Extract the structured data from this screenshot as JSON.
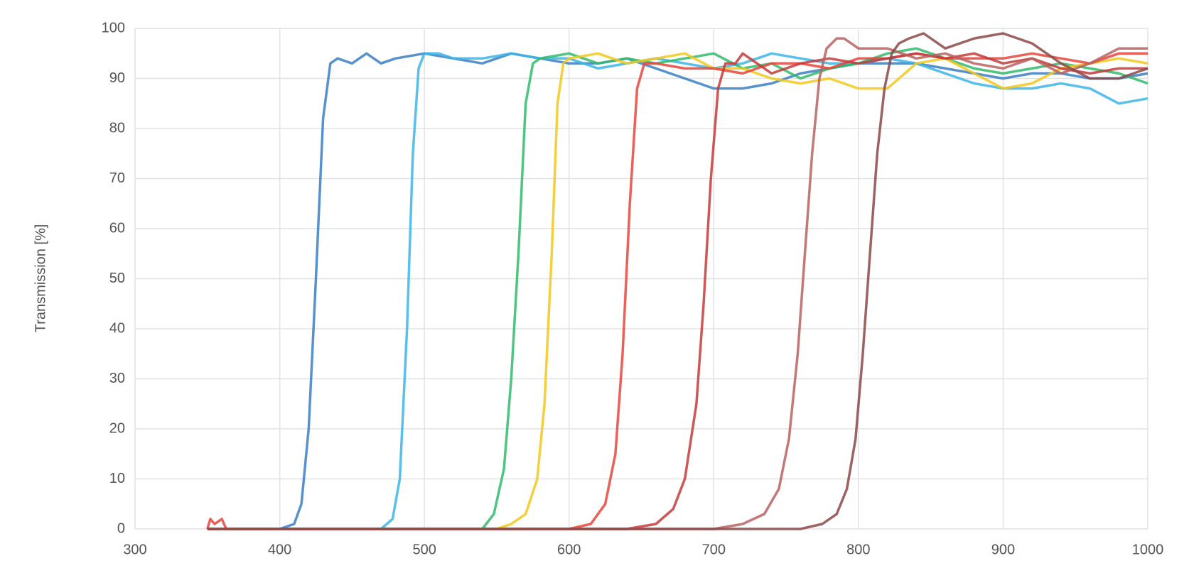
{
  "chart_data": {
    "type": "line",
    "ylabel": "Transmission [%]",
    "xlim": [
      300,
      1000
    ],
    "ylim": [
      0,
      100
    ],
    "xticks": [
      300,
      400,
      500,
      600,
      700,
      800,
      900,
      1000
    ],
    "yticks": [
      0,
      10,
      20,
      30,
      40,
      50,
      60,
      70,
      80,
      90,
      100
    ],
    "grid": true,
    "series": [
      {
        "color": "#3a7fc4",
        "x": [
          350,
          400,
          410,
          415,
          420,
          425,
          430,
          435,
          440,
          450,
          460,
          470,
          480,
          500,
          520,
          540,
          560,
          580,
          600,
          620,
          640,
          660,
          680,
          700,
          720,
          740,
          760,
          780,
          800,
          820,
          840,
          860,
          880,
          900,
          920,
          940,
          960,
          980,
          1000
        ],
        "values": [
          0,
          0,
          1,
          5,
          20,
          50,
          82,
          93,
          94,
          93,
          95,
          93,
          94,
          95,
          94,
          93,
          95,
          94,
          93,
          93,
          94,
          92,
          90,
          88,
          88,
          89,
          91,
          92,
          93,
          93,
          93,
          92,
          91,
          90,
          91,
          91,
          90,
          90,
          91
        ]
      },
      {
        "color": "#3bb5e6",
        "x": [
          350,
          470,
          478,
          483,
          488,
          492,
          496,
          500,
          510,
          520,
          540,
          560,
          580,
          600,
          620,
          640,
          660,
          680,
          700,
          720,
          740,
          760,
          780,
          800,
          820,
          840,
          860,
          880,
          900,
          920,
          940,
          960,
          980,
          1000
        ],
        "values": [
          0,
          0,
          2,
          10,
          40,
          75,
          92,
          95,
          95,
          94,
          94,
          95,
          94,
          94,
          92,
          93,
          94,
          93,
          92,
          93,
          95,
          94,
          93,
          93,
          94,
          93,
          91,
          89,
          88,
          88,
          89,
          88,
          85,
          86
        ]
      },
      {
        "color": "#2fbb6a",
        "x": [
          350,
          540,
          548,
          555,
          560,
          565,
          570,
          575,
          580,
          600,
          620,
          640,
          660,
          680,
          700,
          720,
          740,
          760,
          780,
          800,
          820,
          840,
          860,
          880,
          900,
          920,
          940,
          960,
          980,
          1000
        ],
        "values": [
          0,
          0,
          3,
          12,
          30,
          55,
          85,
          93,
          94,
          95,
          93,
          94,
          93,
          94,
          95,
          92,
          93,
          90,
          92,
          93,
          95,
          96,
          94,
          92,
          91,
          92,
          93,
          92,
          91,
          89
        ]
      },
      {
        "color": "#f2c81a",
        "x": [
          350,
          550,
          560,
          570,
          578,
          583,
          588,
          592,
          596,
          600,
          620,
          640,
          660,
          680,
          700,
          720,
          740,
          760,
          780,
          800,
          820,
          840,
          860,
          880,
          900,
          920,
          940,
          960,
          980,
          1000
        ],
        "values": [
          0,
          0,
          1,
          3,
          10,
          25,
          55,
          85,
          93,
          94,
          95,
          93,
          94,
          95,
          92,
          92,
          90,
          89,
          90,
          88,
          88,
          93,
          94,
          91,
          88,
          89,
          92,
          93,
          94,
          93
        ]
      },
      {
        "color": "#e8443c",
        "x": [
          350,
          352,
          355,
          360,
          363,
          365,
          600,
          615,
          625,
          632,
          637,
          642,
          647,
          652,
          660,
          680,
          700,
          720,
          740,
          760,
          780,
          800,
          820,
          840,
          860,
          880,
          900,
          920,
          940,
          960,
          980,
          1000
        ],
        "values": [
          0,
          2,
          1,
          2,
          0,
          0,
          0,
          1,
          5,
          15,
          35,
          65,
          88,
          93,
          93,
          92,
          92,
          91,
          93,
          93,
          92,
          94,
          94,
          95,
          94,
          94,
          94,
          95,
          94,
          93,
          95,
          95
        ]
      },
      {
        "color": "#c6393a",
        "x": [
          350,
          640,
          660,
          672,
          680,
          688,
          693,
          698,
          703,
          708,
          715,
          720,
          740,
          760,
          780,
          800,
          820,
          840,
          860,
          880,
          900,
          920,
          940,
          960,
          980,
          1000
        ],
        "values": [
          0,
          0,
          1,
          4,
          10,
          25,
          45,
          70,
          88,
          93,
          93,
          95,
          91,
          93,
          94,
          93,
          94,
          95,
          94,
          95,
          93,
          94,
          92,
          91,
          92,
          92
        ]
      },
      {
        "color": "#b8615f",
        "x": [
          350,
          700,
          720,
          735,
          745,
          752,
          758,
          763,
          768,
          773,
          778,
          785,
          790,
          800,
          820,
          840,
          860,
          880,
          900,
          920,
          940,
          960,
          980,
          1000
        ],
        "values": [
          0,
          0,
          1,
          3,
          8,
          18,
          35,
          55,
          75,
          90,
          96,
          98,
          98,
          96,
          96,
          94,
          95,
          93,
          92,
          94,
          91,
          93,
          96,
          96
        ]
      },
      {
        "color": "#8c4846",
        "x": [
          350,
          760,
          775,
          785,
          792,
          798,
          803,
          808,
          813,
          818,
          823,
          828,
          835,
          845,
          860,
          880,
          900,
          920,
          940,
          960,
          980,
          1000
        ],
        "values": [
          0,
          0,
          1,
          3,
          8,
          18,
          35,
          55,
          75,
          88,
          95,
          97,
          98,
          99,
          96,
          98,
          99,
          97,
          93,
          90,
          90,
          92
        ]
      }
    ]
  }
}
